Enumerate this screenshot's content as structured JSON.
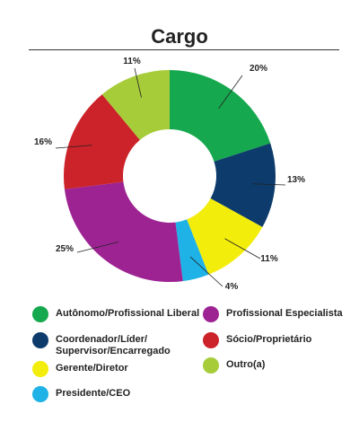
{
  "title": "Cargo",
  "chart_data": {
    "type": "pie",
    "donut": true,
    "title": "Cargo",
    "categories": [
      "Autônomo/Profissional Liberal",
      "Coordenador/Líder/\nSupervisor/Encarregado",
      "Gerente/Diretor",
      "Presidente/CEO",
      "Profissional Especialista",
      "Sócio/Proprietário",
      "Outro(a)"
    ],
    "values": [
      20,
      13,
      11,
      4,
      25,
      16,
      11
    ],
    "labels": [
      "20%",
      "13%",
      "11%",
      "4%",
      "25%",
      "16%",
      "11%"
    ],
    "colors": [
      "#16a84e",
      "#0d3b6b",
      "#f3ed0b",
      "#1fb2e6",
      "#9d2393",
      "#cc2229",
      "#a6cd39"
    ],
    "legend_position": "bottom"
  }
}
